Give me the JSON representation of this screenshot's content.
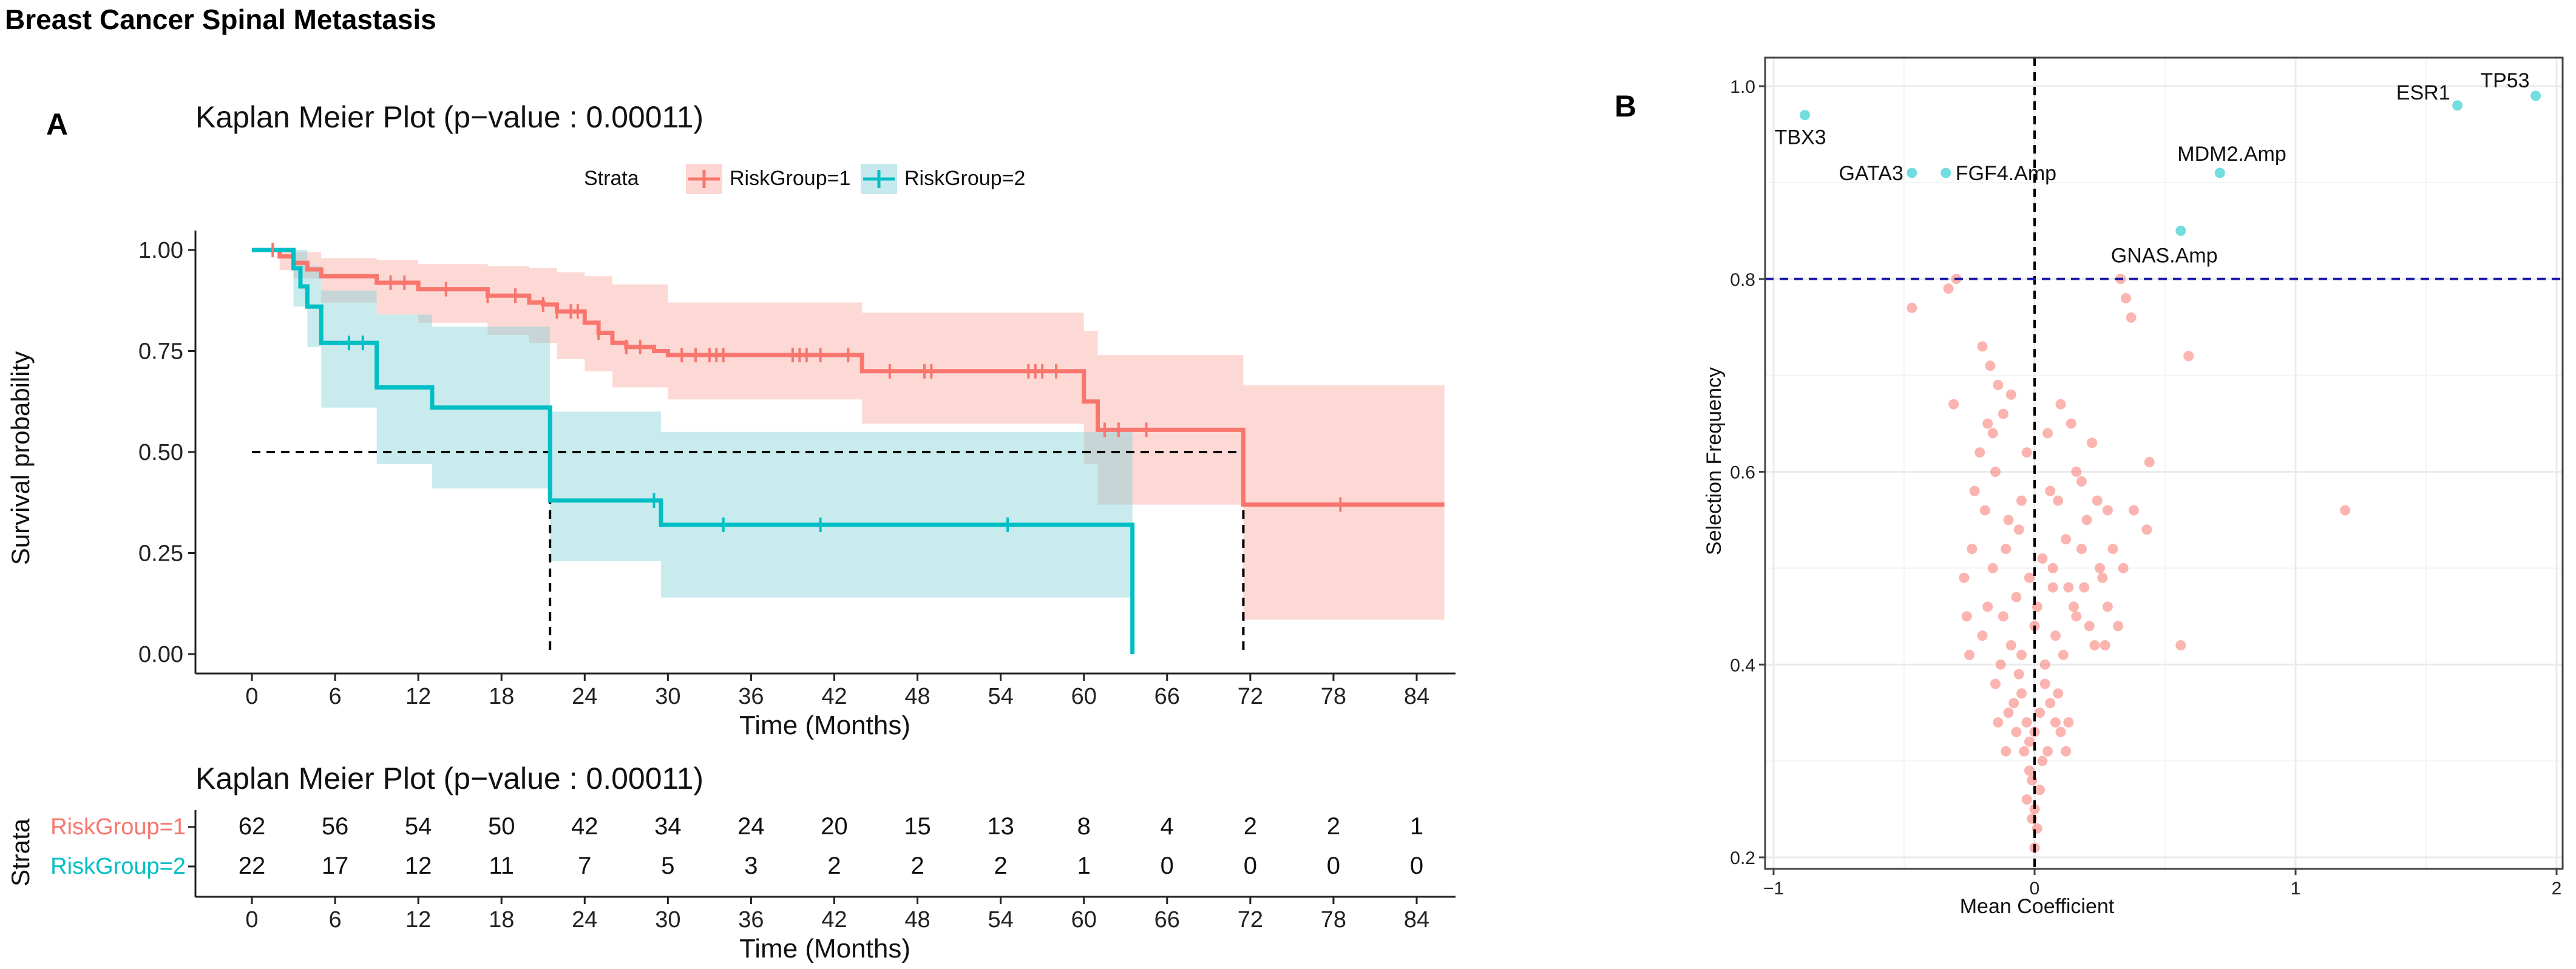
{
  "figure_title": "Breast Cancer Spinal Metastasis",
  "panel_labels": [
    "A",
    "B"
  ],
  "colors": {
    "group1": "#F8766D",
    "group2": "#00BFC4",
    "ci1": "#F8766D",
    "ci2": "#7FCFD6",
    "threshold": "#1a1aa8",
    "median_line": "#000000"
  },
  "chart_data": [
    {
      "type": "line",
      "subtype": "kaplan-meier",
      "title": "Kaplan Meier Plot (p−value : 0.00011)",
      "xlabel": "Time (Months)",
      "ylabel": "Survival probability",
      "xlim": [
        0,
        86
      ],
      "ylim": [
        0,
        1
      ],
      "x_ticks": [
        0,
        6,
        12,
        18,
        24,
        30,
        36,
        42,
        48,
        54,
        60,
        66,
        72,
        78,
        84
      ],
      "y_ticks": [
        "0.00",
        "0.25",
        "0.50",
        "0.75",
        "1.00"
      ],
      "y_tick_values": [
        0,
        0.25,
        0.5,
        0.75,
        1
      ],
      "legend_title": "Strata",
      "legend_position": "top",
      "median_survival_line": 0.5,
      "series": [
        {
          "name": "RiskGroup=1",
          "steps": [
            [
              0,
              1
            ],
            [
              2,
              0.984
            ],
            [
              3,
              0.968
            ],
            [
              4,
              0.952
            ],
            [
              5,
              0.935
            ],
            [
              9,
              0.919
            ],
            [
              12,
              0.903
            ],
            [
              17,
              0.887
            ],
            [
              20,
              0.87
            ],
            [
              21,
              0.865
            ],
            [
              22,
              0.848
            ],
            [
              24,
              0.82
            ],
            [
              25,
              0.795
            ],
            [
              26,
              0.77
            ],
            [
              27,
              0.76
            ],
            [
              29,
              0.75
            ],
            [
              30,
              0.74
            ],
            [
              44,
              0.7
            ],
            [
              60,
              0.625
            ],
            [
              61,
              0.555
            ],
            [
              71.5,
              0.37
            ],
            [
              86,
              0.37
            ]
          ],
          "ci_upper": [
            [
              0,
              1
            ],
            [
              2,
              1
            ],
            [
              3,
              0.995
            ],
            [
              5,
              0.98
            ],
            [
              9,
              0.975
            ],
            [
              12,
              0.965
            ],
            [
              17,
              0.96
            ],
            [
              20,
              0.955
            ],
            [
              22,
              0.945
            ],
            [
              24,
              0.935
            ],
            [
              26,
              0.915
            ],
            [
              30,
              0.87
            ],
            [
              44,
              0.845
            ],
            [
              60,
              0.8
            ],
            [
              61,
              0.74
            ],
            [
              71.5,
              0.665
            ],
            [
              86,
              0.665
            ]
          ],
          "ci_lower": [
            [
              0,
              1
            ],
            [
              2,
              0.95
            ],
            [
              3,
              0.93
            ],
            [
              5,
              0.87
            ],
            [
              9,
              0.84
            ],
            [
              12,
              0.82
            ],
            [
              17,
              0.79
            ],
            [
              20,
              0.77
            ],
            [
              22,
              0.73
            ],
            [
              24,
              0.7
            ],
            [
              26,
              0.66
            ],
            [
              30,
              0.63
            ],
            [
              44,
              0.57
            ],
            [
              60,
              0.47
            ],
            [
              61,
              0.37
            ],
            [
              71.5,
              0.085
            ],
            [
              86,
              0.085
            ]
          ],
          "censor_times": [
            1.5,
            10,
            11,
            14,
            17,
            19,
            21,
            22,
            23,
            23.5,
            25,
            27,
            28,
            31,
            32,
            33,
            33.5,
            34,
            39,
            39.5,
            40,
            41,
            43,
            46,
            48.5,
            49,
            56,
            56.5,
            57,
            58,
            61.5,
            62.5,
            64.5,
            78.5
          ]
        },
        {
          "name": "RiskGroup=2",
          "steps": [
            [
              0,
              1
            ],
            [
              3,
              0.955
            ],
            [
              3.5,
              0.91
            ],
            [
              4,
              0.86
            ],
            [
              5,
              0.77
            ],
            [
              9,
              0.66
            ],
            [
              13,
              0.61
            ],
            [
              21.5,
              0.38
            ],
            [
              29.5,
              0.32
            ],
            [
              63.5,
              0.0
            ]
          ],
          "ci_upper": [
            [
              0,
              1
            ],
            [
              3,
              1
            ],
            [
              4,
              0.96
            ],
            [
              5,
              0.9
            ],
            [
              9,
              0.84
            ],
            [
              13,
              0.81
            ],
            [
              21.5,
              0.6
            ],
            [
              29.5,
              0.55
            ],
            [
              63.5,
              0.55
            ]
          ],
          "ci_lower": [
            [
              0,
              1
            ],
            [
              3,
              0.86
            ],
            [
              4,
              0.76
            ],
            [
              5,
              0.61
            ],
            [
              9,
              0.47
            ],
            [
              13,
              0.41
            ],
            [
              21.5,
              0.23
            ],
            [
              29.5,
              0.14
            ],
            [
              63.5,
              0.14
            ]
          ],
          "censor_times": [
            7,
            8,
            29,
            34,
            41,
            54.5
          ]
        }
      ]
    },
    {
      "type": "table",
      "subtype": "risk-table",
      "title": "Kaplan Meier Plot (p−value : 0.00011)",
      "xlabel": "Time (Months)",
      "ylabel": "Strata",
      "x_ticks": [
        0,
        6,
        12,
        18,
        24,
        30,
        36,
        42,
        48,
        54,
        60,
        66,
        72,
        78,
        84
      ],
      "rows": [
        {
          "name": "RiskGroup=1",
          "values": [
            62,
            56,
            54,
            50,
            42,
            34,
            24,
            20,
            15,
            13,
            8,
            4,
            2,
            2,
            1
          ]
        },
        {
          "name": "RiskGroup=2",
          "values": [
            22,
            17,
            12,
            11,
            7,
            5,
            3,
            2,
            2,
            2,
            1,
            0,
            0,
            0,
            0
          ]
        }
      ]
    },
    {
      "type": "scatter",
      "xlabel": "Mean Coefficient",
      "ylabel": "Selection Frequency",
      "xlim": [
        -1,
        2
      ],
      "ylim": [
        0.2,
        1.0
      ],
      "x_ticks": [
        "−1",
        "0",
        "1",
        "2"
      ],
      "x_tick_values": [
        -1,
        0,
        1,
        2
      ],
      "y_ticks": [
        "0.2",
        "0.4",
        "0.6",
        "0.8",
        "1.0"
      ],
      "y_tick_values": [
        0.2,
        0.4,
        0.6,
        0.8,
        1.0
      ],
      "threshold_y": 0.8,
      "vertical_line_x": 0,
      "labeled_points": [
        {
          "label": "TP53",
          "x": 1.92,
          "y": 0.99
        },
        {
          "label": "ESR1",
          "x": 1.62,
          "y": 0.98
        },
        {
          "label": "TBX3",
          "x": -0.88,
          "y": 0.97
        },
        {
          "label": "GATA3",
          "x": -0.47,
          "y": 0.91
        },
        {
          "label": "FGF4.Amp",
          "x": -0.34,
          "y": 0.91
        },
        {
          "label": "MDM2.Amp",
          "x": 0.71,
          "y": 0.91
        },
        {
          "label": "GNAS.Amp",
          "x": 0.56,
          "y": 0.85
        }
      ],
      "points": [
        [
          -0.47,
          0.77
        ],
        [
          -0.3,
          0.8
        ],
        [
          -0.33,
          0.79
        ],
        [
          0.33,
          0.8
        ],
        [
          0.35,
          0.78
        ],
        [
          0.37,
          0.76
        ],
        [
          0.59,
          0.72
        ],
        [
          1.19,
          0.56
        ],
        [
          0.56,
          0.42
        ],
        [
          0.43,
          0.54
        ],
        [
          0.44,
          0.61
        ],
        [
          -0.31,
          0.67
        ],
        [
          -0.17,
          0.71
        ],
        [
          -0.2,
          0.73
        ],
        [
          -0.14,
          0.69
        ],
        [
          -0.12,
          0.66
        ],
        [
          -0.09,
          0.68
        ],
        [
          -0.21,
          0.62
        ],
        [
          -0.18,
          0.65
        ],
        [
          -0.23,
          0.58
        ],
        [
          -0.19,
          0.56
        ],
        [
          -0.15,
          0.6
        ],
        [
          -0.24,
          0.52
        ],
        [
          -0.16,
          0.5
        ],
        [
          -0.1,
          0.55
        ],
        [
          -0.05,
          0.57
        ],
        [
          -0.03,
          0.62
        ],
        [
          0.05,
          0.64
        ],
        [
          0.1,
          0.67
        ],
        [
          0.14,
          0.65
        ],
        [
          0.22,
          0.63
        ],
        [
          0.18,
          0.59
        ],
        [
          0.09,
          0.57
        ],
        [
          0.12,
          0.53
        ],
        [
          0.2,
          0.55
        ],
        [
          0.25,
          0.5
        ],
        [
          0.3,
          0.52
        ],
        [
          0.34,
          0.5
        ],
        [
          0.28,
          0.46
        ],
        [
          0.21,
          0.44
        ],
        [
          0.16,
          0.45
        ],
        [
          0.07,
          0.48
        ],
        [
          0.03,
          0.51
        ],
        [
          -0.02,
          0.49
        ],
        [
          -0.07,
          0.47
        ],
        [
          -0.12,
          0.45
        ],
        [
          -0.2,
          0.43
        ],
        [
          -0.25,
          0.41
        ],
        [
          -0.18,
          0.46
        ],
        [
          -0.13,
          0.4
        ],
        [
          -0.09,
          0.42
        ],
        [
          -0.05,
          0.41
        ],
        [
          0.0,
          0.44
        ],
        [
          0.04,
          0.4
        ],
        [
          0.08,
          0.43
        ],
        [
          0.11,
          0.41
        ],
        [
          0.15,
          0.46
        ],
        [
          0.19,
          0.48
        ],
        [
          0.23,
          0.42
        ],
        [
          0.32,
          0.44
        ],
        [
          0.27,
          0.42
        ],
        [
          -0.08,
          0.36
        ],
        [
          -0.1,
          0.35
        ],
        [
          -0.05,
          0.37
        ],
        [
          -0.03,
          0.34
        ],
        [
          0.0,
          0.33
        ],
        [
          0.02,
          0.35
        ],
        [
          -0.02,
          0.32
        ],
        [
          0.05,
          0.31
        ],
        [
          -0.07,
          0.33
        ],
        [
          0.1,
          0.33
        ],
        [
          0.13,
          0.34
        ],
        [
          0.03,
          0.3
        ],
        [
          -0.04,
          0.31
        ],
        [
          0.06,
          0.36
        ],
        [
          0.08,
          0.34
        ],
        [
          -0.11,
          0.31
        ],
        [
          -0.01,
          0.28
        ],
        [
          0.02,
          0.27
        ],
        [
          -0.03,
          0.26
        ],
        [
          0.0,
          0.25
        ],
        [
          -0.01,
          0.24
        ],
        [
          0.01,
          0.23
        ],
        [
          -0.02,
          0.29
        ],
        [
          0.04,
          0.38
        ],
        [
          -0.06,
          0.39
        ],
        [
          0.09,
          0.37
        ],
        [
          -0.15,
          0.38
        ],
        [
          -0.14,
          0.34
        ],
        [
          0.12,
          0.31
        ],
        [
          0.0,
          0.21
        ],
        [
          0.07,
          0.5
        ],
        [
          -0.11,
          0.52
        ],
        [
          0.16,
          0.6
        ],
        [
          0.24,
          0.57
        ],
        [
          -0.27,
          0.49
        ],
        [
          -0.26,
          0.45
        ],
        [
          0.01,
          0.46
        ],
        [
          0.13,
          0.48
        ],
        [
          0.06,
          0.58
        ],
        [
          -0.06,
          0.54
        ],
        [
          0.18,
          0.52
        ],
        [
          0.28,
          0.56
        ],
        [
          0.38,
          0.56
        ],
        [
          -0.16,
          0.64
        ],
        [
          0.26,
          0.49
        ]
      ]
    }
  ]
}
